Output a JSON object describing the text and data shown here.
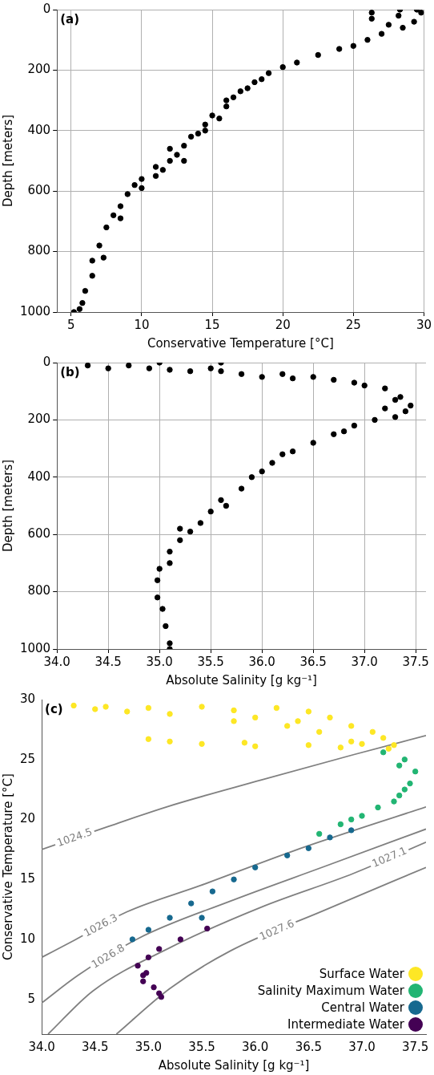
{
  "chart_data": [
    {
      "type": "scatter",
      "xlabel": "Conservative Temperature [°C]",
      "ylabel": "Depth [meters]",
      "annotations": [
        "(a)"
      ],
      "xlim": [
        4,
        30
      ],
      "xticks": [
        5,
        10,
        15,
        20,
        25,
        30
      ],
      "ylim": [
        1000,
        0
      ],
      "yticks": [
        0,
        200,
        400,
        600,
        800,
        1000
      ],
      "grid": true,
      "marker": "circle",
      "legend": false,
      "series": [
        {
          "color": "#000000",
          "x": [
            29.5,
            29.8,
            29.3,
            28.3,
            28.2,
            27.5,
            26.3,
            26.3,
            28.5,
            27,
            26,
            25,
            24,
            22.5,
            21,
            20,
            19,
            18,
            17,
            16.5,
            16,
            15,
            14.5,
            14,
            13.5,
            13,
            12.5,
            12,
            11.5,
            11,
            10,
            10,
            9.5,
            9,
            8.5,
            8,
            8.5,
            7.5,
            7,
            7.3,
            6.5,
            6.5,
            6,
            5.8,
            5.2,
            5.6,
            16,
            17.5,
            18.5,
            13,
            11,
            12,
            14.5,
            15.5
          ],
          "values": [
            0,
            10,
            40,
            0,
            20,
            50,
            10,
            30,
            60,
            80,
            100,
            120,
            130,
            150,
            175,
            190,
            210,
            240,
            270,
            290,
            320,
            350,
            380,
            410,
            420,
            450,
            480,
            500,
            530,
            550,
            560,
            590,
            580,
            610,
            650,
            680,
            690,
            720,
            780,
            820,
            830,
            880,
            930,
            970,
            1000,
            990,
            300,
            260,
            230,
            500,
            520,
            460,
            400,
            360
          ]
        }
      ]
    },
    {
      "type": "scatter",
      "xlabel": "Absolute Salinity [g kg⁻¹]",
      "ylabel": "Depth [meters]",
      "annotations": [
        "(b)"
      ],
      "xlim": [
        34,
        37.6
      ],
      "xticks": [
        {
          "value": 34,
          "label": "34.0"
        },
        34.5,
        {
          "value": 35,
          "label": "35.0"
        },
        35.5,
        {
          "value": 36,
          "label": "36.0"
        },
        36.5,
        {
          "value": 37,
          "label": "37.0"
        },
        37.5
      ],
      "ylim": [
        1000,
        0
      ],
      "yticks": [
        0,
        200,
        400,
        600,
        800,
        1000
      ],
      "grid": true,
      "marker": "circle",
      "legend": false,
      "series": [
        {
          "color": "#000000",
          "x": [
            34.3,
            34.5,
            34.7,
            35.0,
            34.9,
            35.1,
            35.3,
            35.5,
            35.6,
            35.6,
            35.8,
            36.0,
            36.2,
            36.3,
            36.5,
            36.7,
            36.9,
            37.0,
            37.2,
            37.35,
            37.45,
            37.4,
            37.3,
            37.1,
            36.9,
            36.7,
            36.5,
            36.3,
            36.1,
            36.0,
            35.9,
            35.8,
            35.6,
            35.5,
            35.4,
            35.2,
            35.2,
            35.1,
            35.0,
            35.1,
            34.98,
            34.98,
            35.03,
            35.06,
            35.1,
            35.1,
            37.3,
            37.2,
            36.8,
            36.2,
            35.65,
            35.3
          ],
          "values": [
            10,
            20,
            10,
            0,
            20,
            25,
            30,
            20,
            0,
            30,
            40,
            50,
            40,
            55,
            50,
            60,
            70,
            80,
            90,
            120,
            150,
            170,
            190,
            200,
            220,
            250,
            280,
            310,
            350,
            380,
            400,
            440,
            480,
            520,
            560,
            580,
            620,
            660,
            720,
            700,
            760,
            820,
            860,
            920,
            980,
            1000,
            130,
            160,
            240,
            320,
            500,
            590
          ]
        }
      ]
    },
    {
      "type": "scatter",
      "xlabel": "Absolute Salinity [g kg⁻¹]",
      "ylabel": "Conservative Temperature [°C]",
      "annotations": [
        "(c)"
      ],
      "xlim": [
        34,
        37.6
      ],
      "xticks": [
        {
          "value": 34,
          "label": "34.0"
        },
        34.5,
        {
          "value": 35,
          "label": "35.0"
        },
        35.5,
        {
          "value": 36,
          "label": "36.0"
        },
        36.5,
        {
          "value": 37,
          "label": "37.0"
        },
        37.5
      ],
      "ylim": [
        2.1,
        30
      ],
      "yticks": [
        5,
        10,
        15,
        20,
        25,
        30
      ],
      "grid": false,
      "marker": "circle",
      "legend": "bottom right",
      "series": [
        {
          "type": "line",
          "marker": "none",
          "name": "1024.5",
          "color": "#808080",
          "x": [
            34.0,
            34.62,
            35.17,
            36.06,
            36.92,
            37.6
          ],
          "values": [
            17.5,
            19.4,
            21.05,
            23.3,
            25.4,
            27.0
          ]
        },
        {
          "type": "line",
          "marker": "none",
          "name": "1026.3",
          "color": "#808080",
          "x": [
            34.0,
            34.31,
            34.8,
            35.49,
            36.35,
            37.6
          ],
          "values": [
            8.5,
            9.95,
            12.3,
            14.5,
            17.35,
            21.05
          ]
        },
        {
          "type": "line",
          "marker": "none",
          "name": "1026.8",
          "color": "#808080",
          "x": [
            34.0,
            34.34,
            34.91,
            35.77,
            36.64,
            37.6
          ],
          "values": [
            4.7,
            7.0,
            10.1,
            13.2,
            16.05,
            19.2
          ]
        },
        {
          "type": "line",
          "marker": "none",
          "name": "1027.1",
          "color": "#808080",
          "x": [
            34.06,
            34.48,
            35.2,
            36.06,
            36.92,
            37.6
          ],
          "values": [
            2.1,
            5.7,
            9.3,
            12.7,
            15.5,
            18.1
          ]
        },
        {
          "type": "line",
          "marker": "none",
          "name": "1027.6",
          "color": "#808080",
          "x": [
            34.7,
            35.2,
            35.77,
            36.64,
            37.6
          ],
          "values": [
            2.1,
            5.9,
            9.05,
            12.4,
            16.0
          ]
        },
        {
          "name": "Surface Water",
          "color": "#fde725",
          "x": [
            34.3,
            34.5,
            34.6,
            34.8,
            35.0,
            35.2,
            35.5,
            35.8,
            36.0,
            36.2,
            36.4,
            36.5,
            36.7,
            36.9,
            37.1,
            37.2,
            37.3,
            37.0,
            36.8,
            36.5,
            36.0,
            35.5,
            35.2,
            35.0,
            36.6,
            36.3,
            35.8,
            35.9,
            37.25,
            36.9
          ],
          "values": [
            29.5,
            29.2,
            29.4,
            29.0,
            29.3,
            28.8,
            29.4,
            29.1,
            28.5,
            29.3,
            28.2,
            29.0,
            28.5,
            27.8,
            27.3,
            26.8,
            26.2,
            26.3,
            26.0,
            26.2,
            26.1,
            26.3,
            26.5,
            26.7,
            27.3,
            27.8,
            28.2,
            26.4,
            25.9,
            26.5
          ]
        },
        {
          "name": "Salinity Maximum Water",
          "color": "#22b573",
          "x": [
            37.4,
            37.5,
            37.45,
            37.4,
            37.3,
            37.15,
            37.0,
            36.8,
            36.6,
            37.2,
            37.35,
            37.35,
            36.9
          ],
          "values": [
            25.0,
            24.0,
            23.0,
            22.5,
            21.5,
            21.0,
            20.3,
            19.6,
            18.8,
            25.6,
            24.5,
            22.0,
            20.0
          ]
        },
        {
          "name": "Central Water",
          "color": "#17698f",
          "x": [
            36.9,
            36.7,
            36.5,
            36.3,
            36.0,
            35.8,
            35.6,
            35.4,
            35.2,
            35.0,
            34.85,
            35.5
          ],
          "values": [
            19.1,
            18.5,
            17.6,
            17.0,
            16.0,
            15.0,
            14.0,
            13.0,
            11.8,
            10.8,
            10.0,
            11.8
          ]
        },
        {
          "name": "Intermediate Water",
          "color": "#440154",
          "x": [
            35.55,
            35.3,
            35.1,
            35.0,
            34.9,
            34.95,
            34.95,
            35.05,
            35.1,
            35.12,
            34.98
          ],
          "values": [
            10.9,
            10.0,
            9.2,
            8.5,
            7.8,
            7.0,
            6.5,
            6.0,
            5.5,
            5.2,
            7.2
          ]
        }
      ]
    }
  ]
}
